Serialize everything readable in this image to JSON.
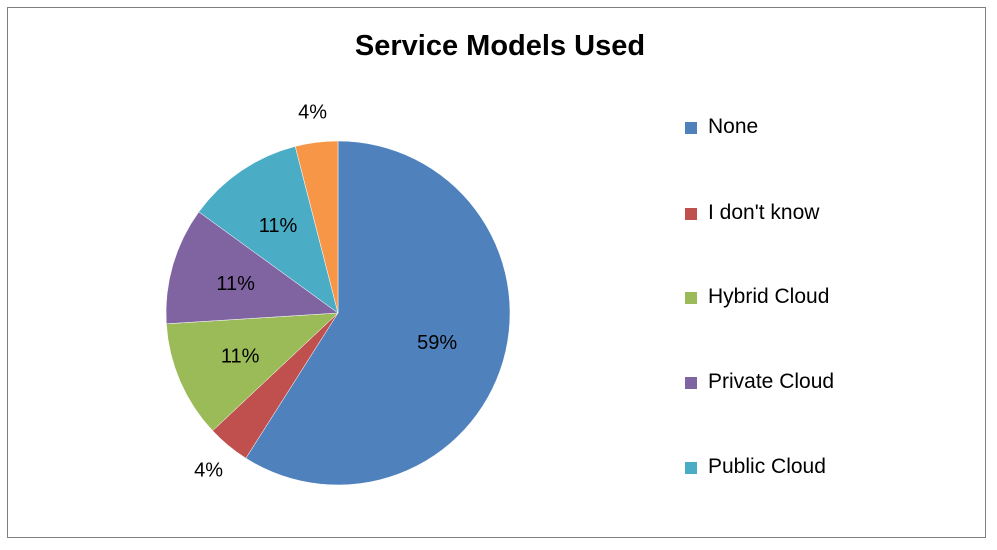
{
  "chart_data": {
    "type": "pie",
    "title": "Service Models Used",
    "categories": [
      "None",
      "I don't know",
      "Hybrid Cloud",
      "Private Cloud",
      "Public Cloud",
      ""
    ],
    "values": [
      59,
      4,
      11,
      11,
      11,
      4
    ],
    "labels": [
      "59%",
      "4%",
      "11%",
      "11%",
      "11%",
      "4%"
    ],
    "colors": [
      "#4f81bd",
      "#c0504d",
      "#9bbb59",
      "#8064a2",
      "#4bacc6",
      "#f79646"
    ],
    "legend": {
      "position": "right",
      "entries": [
        "None",
        "I don't know",
        "Hybrid Cloud",
        "Private Cloud",
        "Public Cloud"
      ]
    }
  }
}
